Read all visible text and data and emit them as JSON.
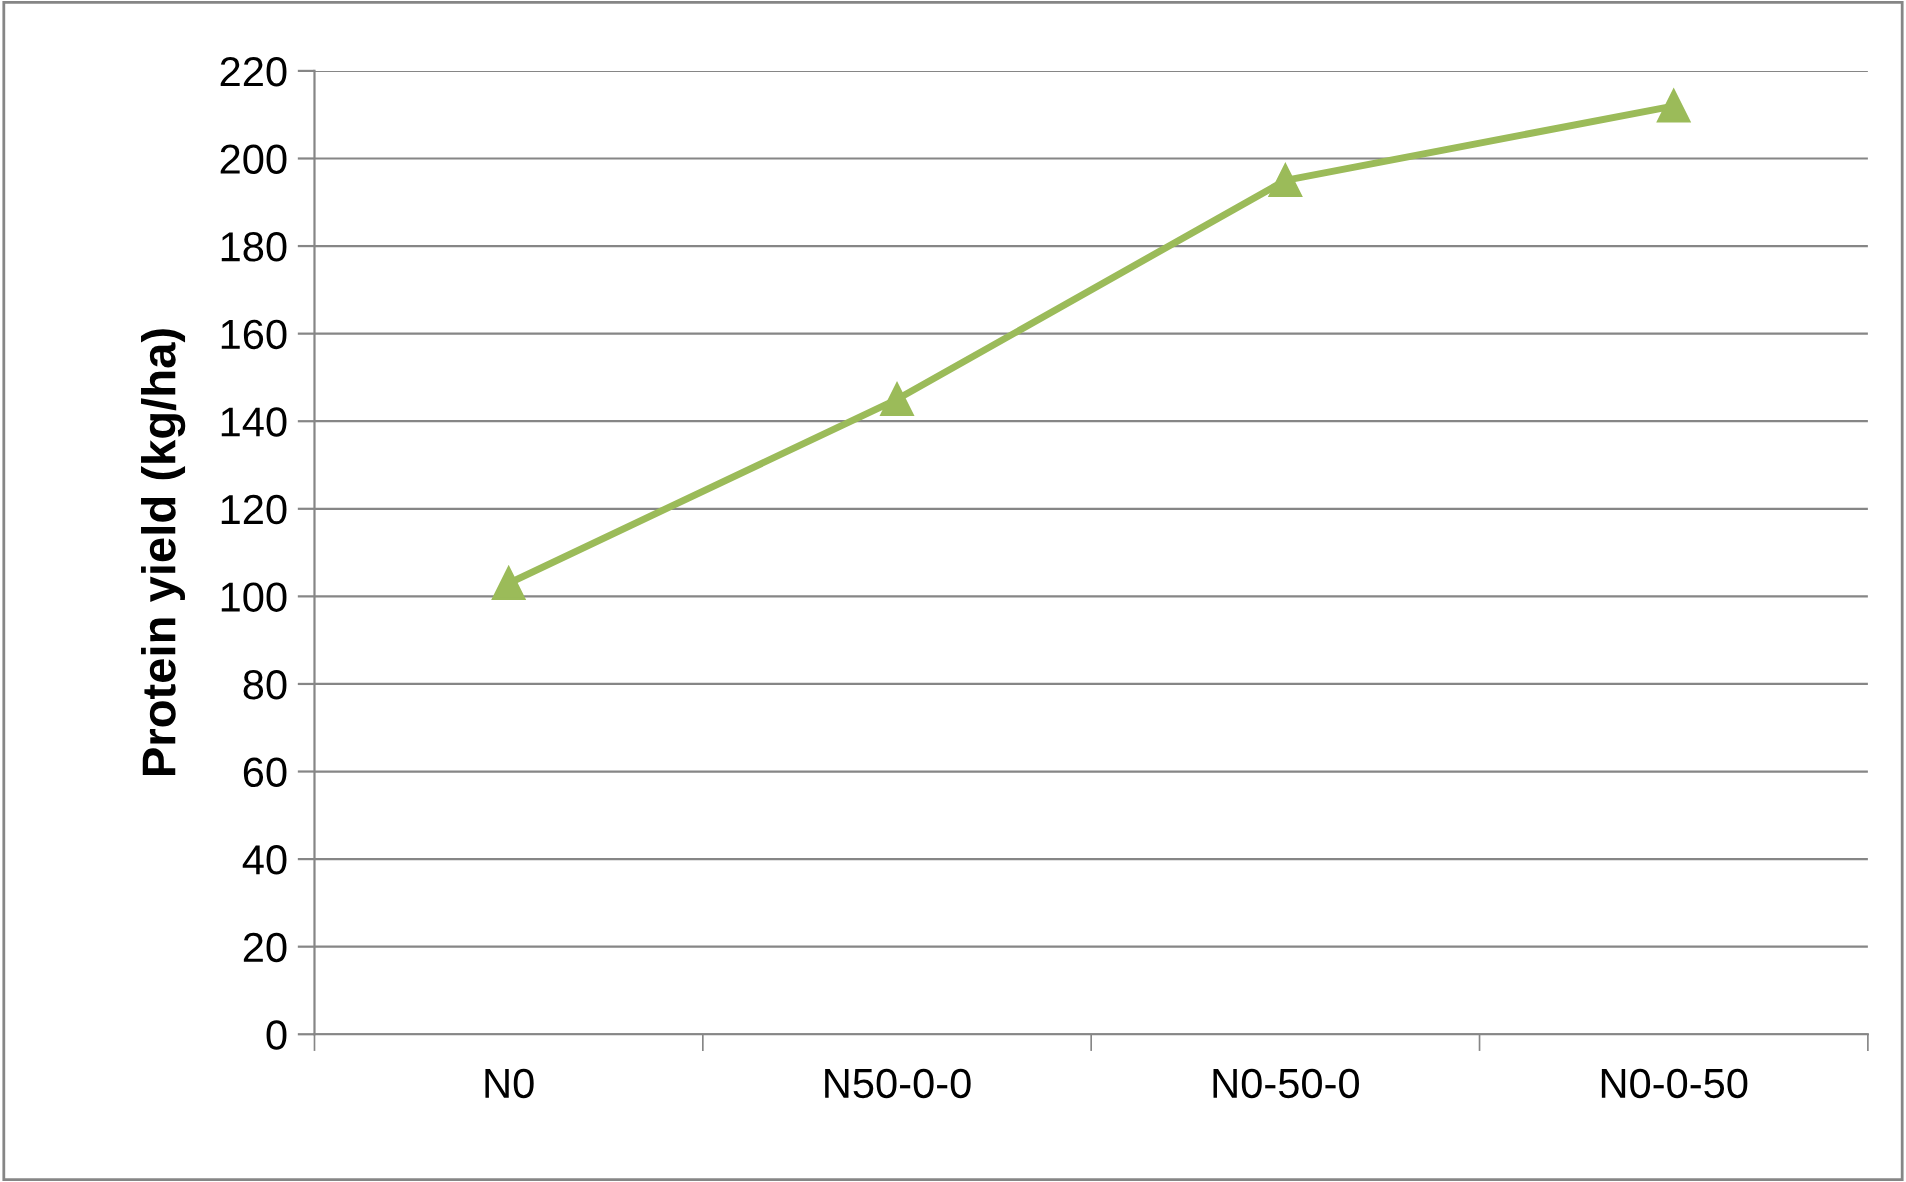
{
  "chart_data": {
    "type": "line",
    "ylabel": "Protein yield (kg/ha)",
    "categories": [
      "N0",
      "N50-0-0",
      "N0-50-0",
      "N0-0-50"
    ],
    "series": [
      {
        "color": "#9bbb59",
        "values": [
          103,
          145,
          195,
          212
        ]
      }
    ],
    "ylim": [
      0,
      220
    ],
    "yticks": [
      0,
      20,
      40,
      60,
      80,
      100,
      120,
      140,
      160,
      180,
      200,
      220
    ],
    "grid": "y",
    "marker": "triangle",
    "line_style": "solid",
    "legend": false
  }
}
